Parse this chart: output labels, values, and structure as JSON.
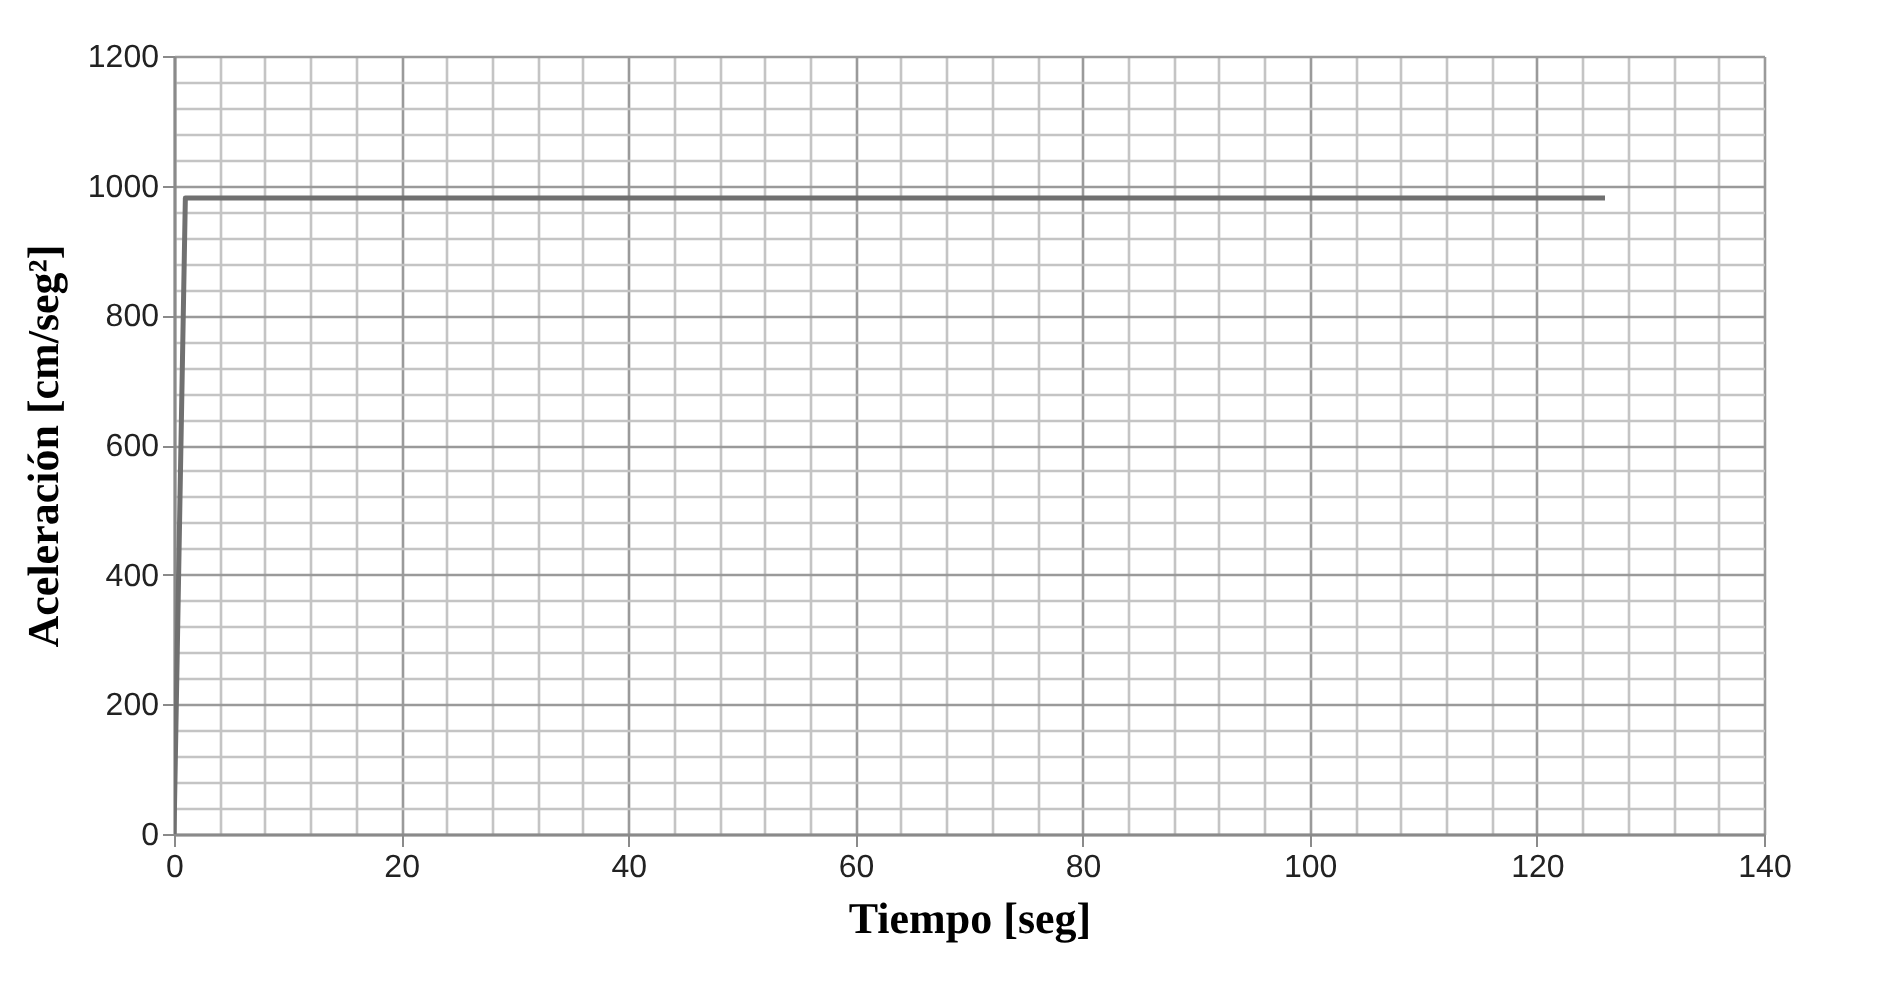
{
  "chart_data": {
    "type": "line",
    "xlabel": "Tiempo [seg]",
    "ylabel": "Aceleración [cm/seg²]",
    "x": [
      0,
      1,
      126
    ],
    "series": [
      {
        "color": "#707070",
        "values": [
          0,
          981,
          981
        ]
      }
    ],
    "xlim": [
      0,
      140
    ],
    "ylim": [
      0,
      1200
    ],
    "xticks": [
      0,
      {
        "value": 4,
        "label": null
      },
      {
        "value": 8,
        "label": null
      },
      {
        "value": 12,
        "label": null
      },
      {
        "value": 16,
        "label": null
      },
      20,
      {
        "value": 24,
        "label": null
      },
      {
        "value": 28,
        "label": null
      },
      {
        "value": 32,
        "label": null
      },
      {
        "value": 36,
        "label": null
      },
      40,
      {
        "value": 44,
        "label": null
      },
      {
        "value": 48,
        "label": null
      },
      {
        "value": 52,
        "label": null
      },
      {
        "value": 56,
        "label": null
      },
      60,
      {
        "value": 64,
        "label": null
      },
      {
        "value": 68,
        "label": null
      },
      {
        "value": 72,
        "label": null
      },
      {
        "value": 76,
        "label": null
      },
      80,
      {
        "value": 84,
        "label": null
      },
      {
        "value": 88,
        "label": null
      },
      {
        "value": 92,
        "label": null
      },
      {
        "value": 96,
        "label": null
      },
      100,
      {
        "value": 104,
        "label": null
      },
      {
        "value": 108,
        "label": null
      },
      {
        "value": 112,
        "label": null
      },
      {
        "value": 116,
        "label": null
      },
      120,
      {
        "value": 124,
        "label": null
      },
      {
        "value": 128,
        "label": null
      },
      {
        "value": 132,
        "label": null
      },
      {
        "value": 136,
        "label": null
      },
      140
    ],
    "yticks": [
      0,
      {
        "value": 40,
        "label": null
      },
      {
        "value": 80,
        "label": null
      },
      {
        "value": 120,
        "label": null
      },
      {
        "value": 160,
        "label": null
      },
      200,
      {
        "value": 240,
        "label": null
      },
      {
        "value": 280,
        "label": null
      },
      {
        "value": 320,
        "label": null
      },
      {
        "value": 360,
        "label": null
      },
      400,
      {
        "value": 440,
        "label": null
      },
      {
        "value": 480,
        "label": null
      },
      {
        "value": 520,
        "label": null
      },
      {
        "value": 560,
        "label": null
      },
      600,
      {
        "value": 640,
        "label": null
      },
      {
        "value": 680,
        "label": null
      },
      {
        "value": 720,
        "label": null
      },
      {
        "value": 760,
        "label": null
      },
      800,
      {
        "value": 840,
        "label": null
      },
      {
        "value": 880,
        "label": null
      },
      {
        "value": 920,
        "label": null
      },
      {
        "value": 960,
        "label": null
      },
      1000,
      {
        "value": 1040,
        "label": null
      },
      {
        "value": 1080,
        "label": null
      },
      {
        "value": 1120,
        "label": null
      },
      {
        "value": 1160,
        "label": null
      },
      1200
    ],
    "grid": true,
    "marker": "none",
    "line_style": "solid"
  }
}
